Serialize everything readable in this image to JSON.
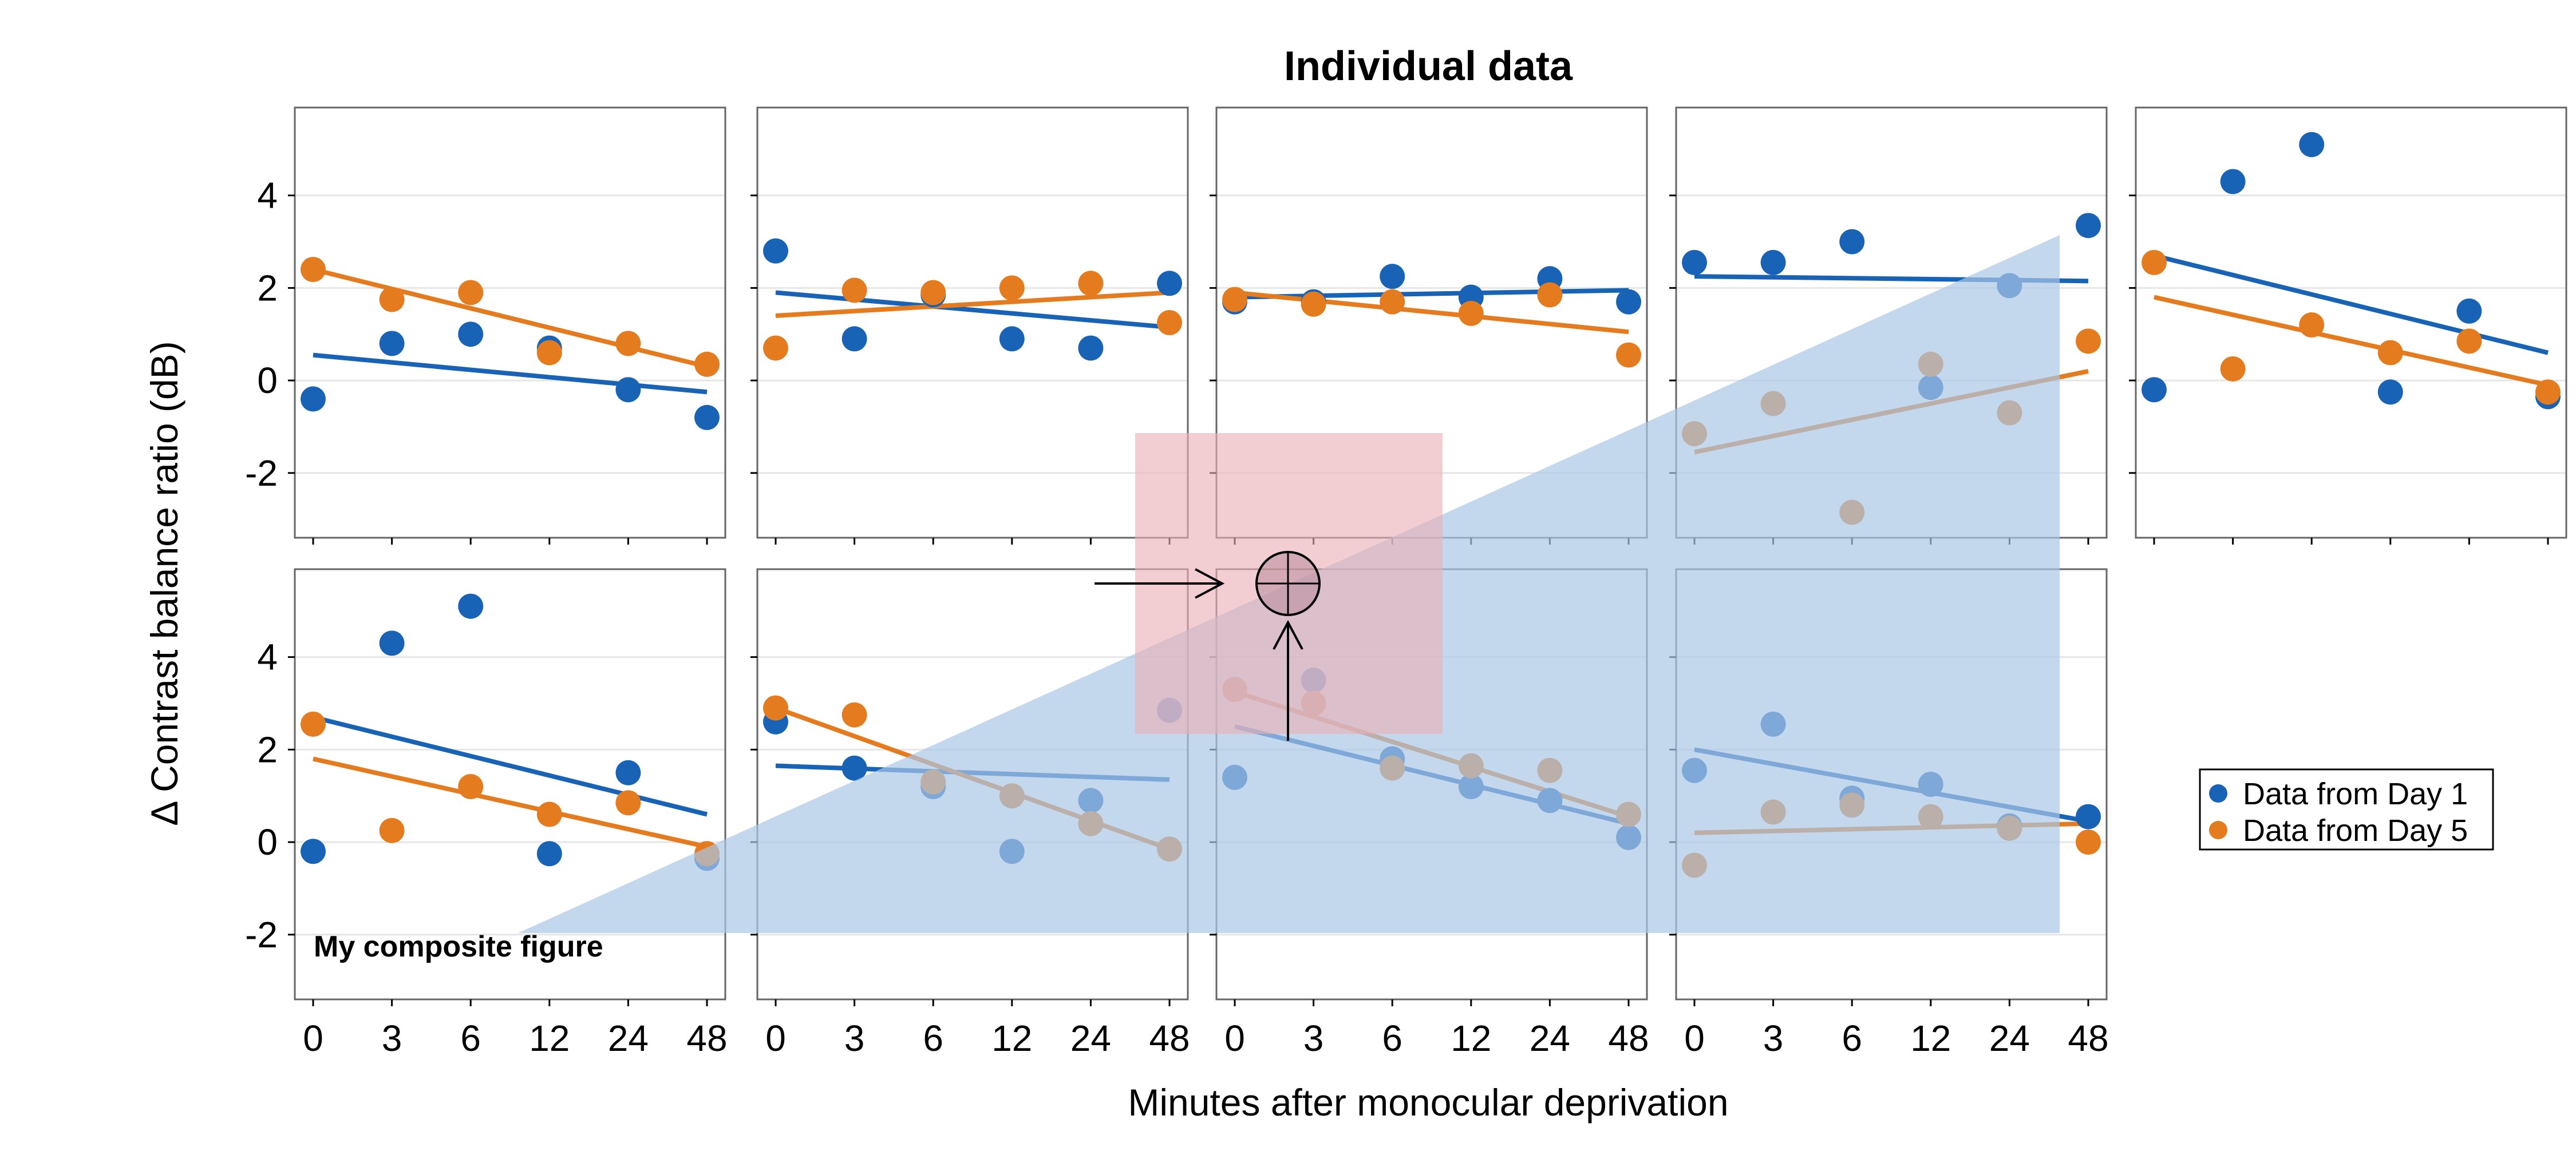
{
  "figure": {
    "title": "Individual data",
    "xlabel": "Minutes after monocular deprivation",
    "ylabel": "Δ Contrast balance ratio (dB)",
    "caption": "My composite figure"
  },
  "legend": {
    "placement": "right",
    "items": [
      {
        "label": "Data from Day 1",
        "color": "#1863b5"
      },
      {
        "label": "Data from Day 5",
        "color": "#e47b1f"
      }
    ]
  },
  "colors": {
    "day1": "#1863b5",
    "day5": "#e47b1f",
    "overlay_triangle": "#a9c6e6",
    "overlay_rect": "#eab0b6",
    "grid": "#e6e6e6",
    "frame": "#666666"
  },
  "chart_data": {
    "type": "scatter",
    "layout": "small-multiples",
    "categories": [
      "0",
      "3",
      "6",
      "12",
      "24",
      "48"
    ],
    "yticks": [
      4,
      2,
      0,
      -2
    ],
    "ylim": [
      -3.4,
      5.9
    ],
    "grid": true,
    "panels": [
      {
        "id": "p1",
        "series": [
          {
            "name": "Data from Day 1",
            "values": [
              -0.4,
              0.8,
              1.0,
              0.7,
              -0.2,
              -0.8
            ],
            "fit": [
              0.55,
              -0.25
            ]
          },
          {
            "name": "Data from Day 5",
            "values": [
              2.4,
              1.75,
              1.9,
              0.6,
              0.8,
              0.35
            ],
            "fit": [
              2.4,
              0.3
            ]
          }
        ]
      },
      {
        "id": "p2",
        "series": [
          {
            "name": "Data from Day 1",
            "values": [
              2.8,
              0.9,
              1.85,
              0.9,
              0.7,
              2.1
            ],
            "fit": [
              1.9,
              1.15
            ]
          },
          {
            "name": "Data from Day 5",
            "values": [
              0.7,
              1.95,
              1.9,
              2.0,
              2.1,
              1.25
            ],
            "fit": [
              1.4,
              1.9
            ]
          }
        ]
      },
      {
        "id": "p3",
        "series": [
          {
            "name": "Data from Day 1",
            "values": [
              1.7,
              1.7,
              2.25,
              1.8,
              2.2,
              1.7
            ],
            "fit": [
              1.8,
              1.95
            ]
          },
          {
            "name": "Data from Day 5",
            "values": [
              1.75,
              1.65,
              1.7,
              1.45,
              1.85,
              0.55
            ],
            "fit": [
              1.9,
              1.05
            ]
          }
        ]
      },
      {
        "id": "p4",
        "series": [
          {
            "name": "Data from Day 1",
            "values": [
              2.55,
              2.55,
              3.0,
              -0.15,
              2.05,
              3.35
            ],
            "fit": [
              2.25,
              2.15
            ]
          },
          {
            "name": "Data from Day 5",
            "values": [
              -1.15,
              -0.5,
              -2.85,
              0.35,
              -0.7,
              0.85
            ],
            "fit": [
              -1.55,
              0.2
            ]
          }
        ]
      },
      {
        "id": "p5",
        "series": [
          {
            "name": "Data from Day 1",
            "values": [
              -0.2,
              4.3,
              5.1,
              -0.25,
              1.5,
              -0.35
            ],
            "fit": [
              2.7,
              0.6
            ]
          },
          {
            "name": "Data from Day 5",
            "values": [
              2.55,
              0.25,
              1.2,
              0.6,
              0.85,
              -0.25
            ],
            "fit": [
              1.8,
              -0.1
            ]
          }
        ]
      },
      {
        "id": "p6",
        "series": [
          {
            "name": "Data from Day 1",
            "values": [
              -0.2,
              4.3,
              5.1,
              -0.25,
              1.5,
              -0.35
            ],
            "fit": [
              2.7,
              0.6
            ]
          },
          {
            "name": "Data from Day 5",
            "values": [
              2.55,
              0.25,
              1.2,
              0.6,
              0.85,
              -0.25
            ],
            "fit": [
              1.8,
              -0.1
            ]
          }
        ]
      },
      {
        "id": "p7",
        "series": [
          {
            "name": "Data from Day 1",
            "values": [
              2.6,
              1.6,
              1.2,
              -0.2,
              0.9,
              2.85
            ],
            "fit": [
              1.65,
              1.35
            ]
          },
          {
            "name": "Data from Day 5",
            "values": [
              2.9,
              2.75,
              1.3,
              1.0,
              0.4,
              -0.15
            ],
            "fit": [
              2.9,
              -0.15
            ]
          }
        ]
      },
      {
        "id": "p8",
        "series": [
          {
            "name": "Data from Day 1",
            "values": [
              1.4,
              3.5,
              1.8,
              1.2,
              0.9,
              0.1
            ],
            "fit": [
              2.5,
              0.4
            ]
          },
          {
            "name": "Data from Day 5",
            "values": [
              3.3,
              3.0,
              1.6,
              1.65,
              1.55,
              0.6
            ],
            "fit": [
              3.25,
              0.55
            ]
          }
        ]
      },
      {
        "id": "p9",
        "series": [
          {
            "name": "Data from Day 1",
            "values": [
              1.55,
              2.55,
              0.95,
              1.25,
              0.35,
              0.55
            ],
            "fit": [
              2.0,
              0.45
            ]
          },
          {
            "name": "Data from Day 5",
            "values": [
              -0.5,
              0.65,
              0.8,
              0.55,
              0.3,
              0.0
            ],
            "fit": [
              0.2,
              0.4
            ]
          }
        ]
      }
    ]
  }
}
